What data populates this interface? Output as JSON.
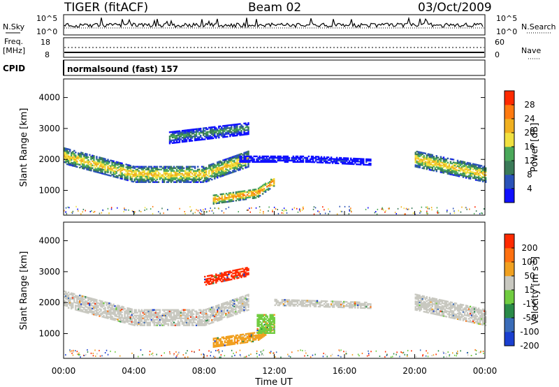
{
  "header": {
    "title": "TIGER (fitACF)",
    "beam": "Beam 02",
    "date": "03/Oct/2009"
  },
  "status_panels": {
    "nsky_label": "N.Sky",
    "nsearch_label": "N.Search",
    "noise_ticks": [
      "10^5",
      "10^0"
    ],
    "freq_label_1": "Freq.",
    "freq_label_2": "[MHz]",
    "freq_ticks": [
      "18",
      "8"
    ],
    "nave_label": "Nave",
    "nave_ticks": [
      "60",
      "0"
    ],
    "cpid_label": "CPID",
    "cpid_value": "normalsound (fast) 157"
  },
  "chart_data": [
    {
      "type": "heatmap",
      "ylabel": "Slant Range [km]",
      "yticks": [
        "1000",
        "2000",
        "3000",
        "4000"
      ],
      "ylim": [
        200,
        4600
      ],
      "colorbar": {
        "label": "Power [dB]",
        "ticks": [
          "4",
          "8",
          "12",
          "16",
          "20",
          "24",
          "28"
        ],
        "colors": [
          "#1010ff",
          "#2a52b8",
          "#3a7a58",
          "#4aa85a",
          "#f0e040",
          "#f0b020",
          "#ff7a10",
          "#ff2a00"
        ]
      },
      "bands": [
        {
          "t": [
            0.0,
            4.0,
            8.0,
            10.5
          ],
          "r": [
            2100,
            1500,
            1500,
            2000
          ],
          "w": 500,
          "level": 5
        },
        {
          "t": [
            8.5,
            11.0,
            12.0
          ],
          "r": [
            700,
            900,
            1300
          ],
          "w": 300,
          "level": 6
        },
        {
          "t": [
            10.0,
            14.0,
            17.5
          ],
          "r": [
            2000,
            2000,
            1900
          ],
          "w": 200,
          "level": 1
        },
        {
          "t": [
            6.0,
            10.5
          ],
          "r": [
            2700,
            3000
          ],
          "w": 400,
          "level": 3
        },
        {
          "t": [
            20.0,
            24.0
          ],
          "r": [
            2000,
            1500
          ],
          "w": 500,
          "level": 5
        }
      ]
    },
    {
      "type": "heatmap",
      "ylabel": "Slant Range [km]",
      "yticks": [
        "1000",
        "2000",
        "3000",
        "4000"
      ],
      "ylim": [
        200,
        4600
      ],
      "xlabel": "Time UT",
      "xticks": [
        "00:00",
        "04:00",
        "08:00",
        "12:00",
        "16:00",
        "20:00",
        "00:00"
      ],
      "colorbar": {
        "label": "Velocity [m s",
        "label_sup": "-1",
        "label_end": "]",
        "ticks": [
          "200",
          "100",
          "50",
          "15",
          "-15",
          "-50",
          "-100",
          "-200"
        ],
        "colors": [
          "#1a3fd0",
          "#3a6cb8",
          "#2a8a48",
          "#70cc40",
          "#c8c8c0",
          "#f0a020",
          "#ff7010",
          "#ff2a00"
        ]
      },
      "bands": [
        {
          "t": [
            0.0,
            4.0,
            8.0,
            10.5
          ],
          "r": [
            2100,
            1500,
            1500,
            2000
          ],
          "w": 500,
          "level": 4
        },
        {
          "t": [
            8.5,
            11.0,
            12.0
          ],
          "r": [
            700,
            900,
            1300
          ],
          "w": 300,
          "level": 5
        },
        {
          "t": [
            11.0,
            12.0
          ],
          "r": [
            1300,
            1300
          ],
          "w": 600,
          "level": 3
        },
        {
          "t": [
            12.0,
            17.5
          ],
          "r": [
            2000,
            1900
          ],
          "w": 200,
          "level": 4
        },
        {
          "t": [
            8.0,
            10.5
          ],
          "r": [
            2700,
            3000
          ],
          "w": 300,
          "level": 7
        },
        {
          "t": [
            20.0,
            24.0
          ],
          "r": [
            2000,
            1500
          ],
          "w": 500,
          "level": 4
        }
      ]
    }
  ]
}
